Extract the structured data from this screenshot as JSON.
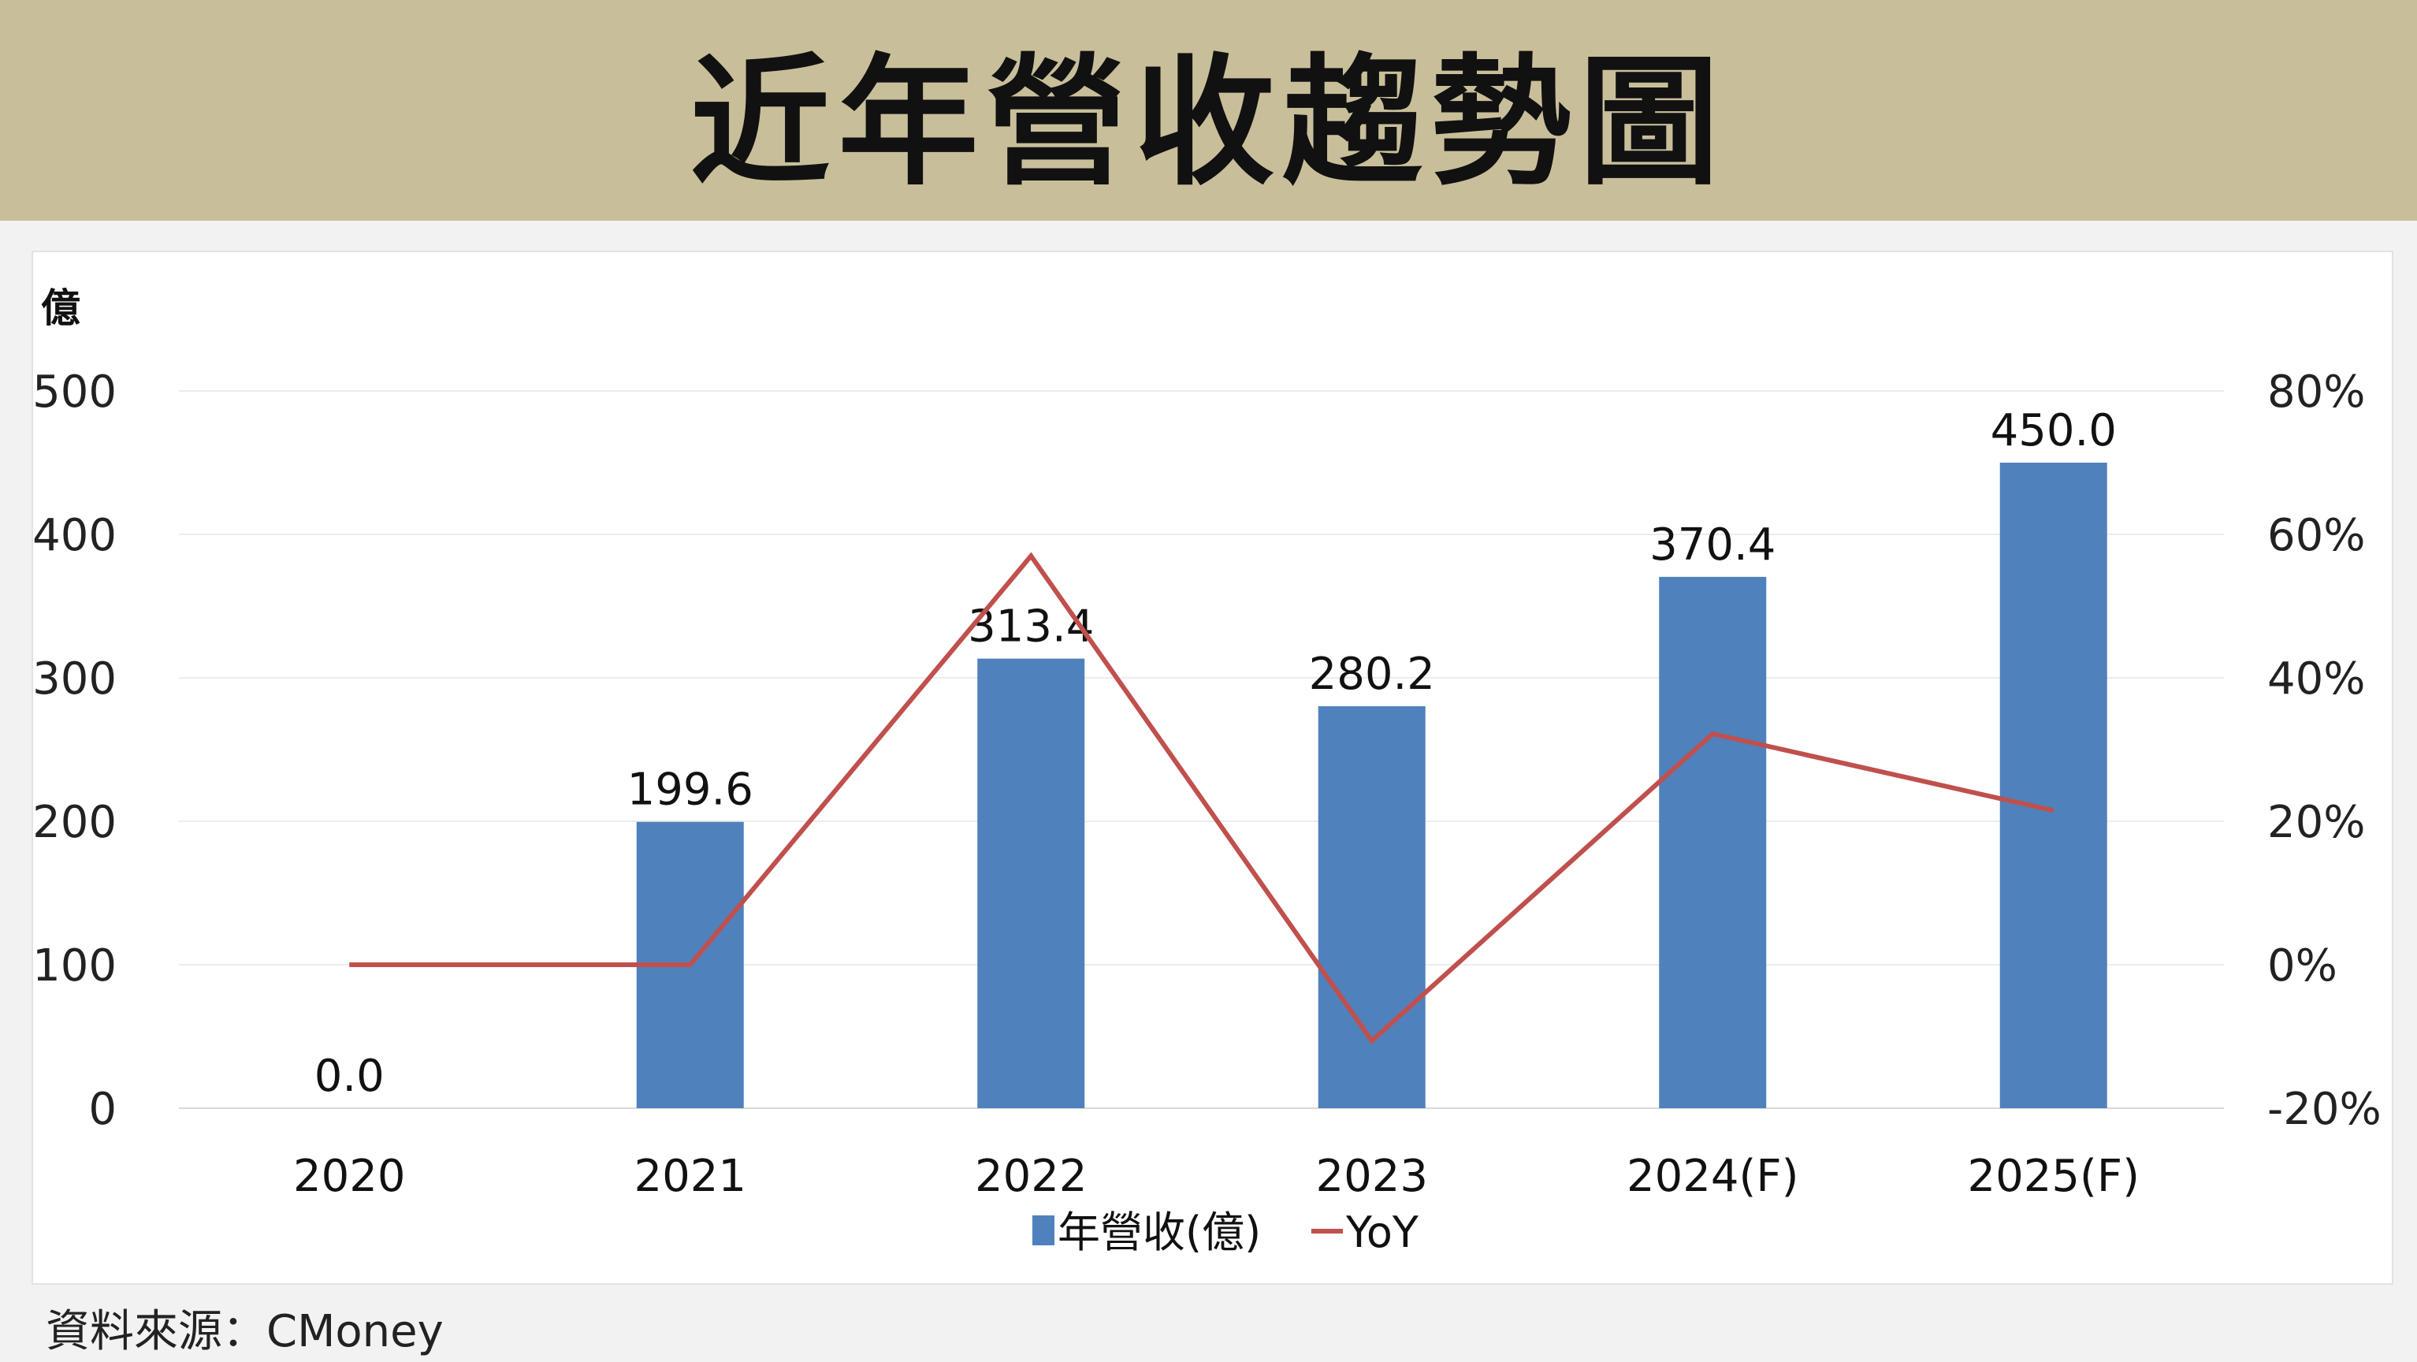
{
  "header": {
    "title": "近年營收趨勢圖"
  },
  "footer": {
    "source": "資料來源：CMoney"
  },
  "chart_data": {
    "type": "bar",
    "categories": [
      "2020",
      "2021",
      "2022",
      "2023",
      "2024(F)",
      "2025(F)"
    ],
    "series": [
      {
        "name": "年營收(億)",
        "type": "bar",
        "axis": "left",
        "color": "#4f81bd",
        "values": [
          0.0,
          199.6,
          313.4,
          280.2,
          370.4,
          450.0
        ],
        "labels": [
          "0.0",
          "199.6",
          "313.4",
          "280.2",
          "370.4",
          "450.0"
        ]
      },
      {
        "name": "YoY",
        "type": "line",
        "axis": "right",
        "color": "#c0504d",
        "values": [
          0,
          0,
          57,
          -10.6,
          32.2,
          21.5
        ]
      }
    ],
    "y_left": {
      "unit_label": "億",
      "ylim": [
        0,
        500
      ],
      "ticks": [
        "0",
        "100",
        "200",
        "300",
        "400",
        "500"
      ]
    },
    "y_right": {
      "ylim": [
        -20,
        80
      ],
      "ticks": [
        "-20%",
        "0%",
        "20%",
        "40%",
        "60%",
        "80%"
      ]
    },
    "grid": true,
    "legend_position": "bottom"
  }
}
